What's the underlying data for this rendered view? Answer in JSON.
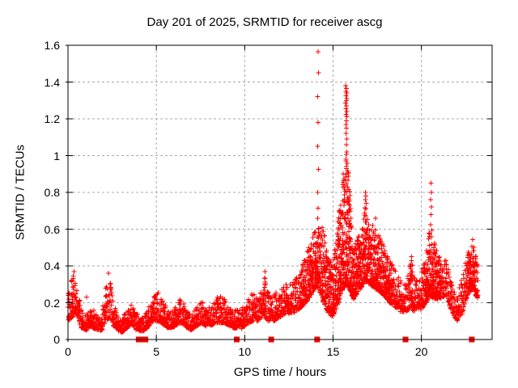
{
  "chart_data": {
    "type": "scatter",
    "title": "Day 201 of 2025, SRMTID for receiver ascg",
    "xlabel": "GPS time / hours",
    "ylabel": "SRMTID / TECUs",
    "xlim": [
      0,
      24
    ],
    "ylim": [
      0,
      1.6
    ],
    "xticks": [
      0,
      5,
      10,
      15,
      20
    ],
    "xtick_labels": [
      "0",
      "5",
      "10",
      "15",
      "20"
    ],
    "yticks": [
      0,
      0.2,
      0.4,
      0.6,
      0.8,
      1,
      1.2,
      1.4,
      1.6
    ],
    "ytick_labels": [
      "0",
      "0.2",
      "0.4",
      "0.6",
      "0.8",
      "1",
      "1.2",
      "1.4",
      "1.6"
    ],
    "grid": true,
    "legend": "none",
    "series": [
      {
        "name": "srmtid-points",
        "marker": "plus",
        "color": "#ff0000",
        "sample_step_hours": 0.008333,
        "envelope": [
          [
            0.0,
            0.1,
            0.28
          ],
          [
            0.25,
            0.12,
            0.35
          ],
          [
            0.45,
            0.15,
            0.33
          ],
          [
            0.6,
            0.1,
            0.25
          ],
          [
            0.8,
            0.06,
            0.15
          ],
          [
            1.05,
            0.05,
            0.13
          ],
          [
            1.3,
            0.07,
            0.18
          ],
          [
            1.6,
            0.05,
            0.14
          ],
          [
            1.9,
            0.05,
            0.12
          ],
          [
            2.15,
            0.1,
            0.28
          ],
          [
            2.35,
            0.12,
            0.33
          ],
          [
            2.55,
            0.08,
            0.22
          ],
          [
            2.8,
            0.05,
            0.14
          ],
          [
            3.05,
            0.04,
            0.11
          ],
          [
            3.3,
            0.06,
            0.16
          ],
          [
            3.6,
            0.08,
            0.19
          ],
          [
            3.9,
            0.05,
            0.14
          ],
          [
            4.2,
            0.04,
            0.12
          ],
          [
            4.5,
            0.06,
            0.16
          ],
          [
            4.85,
            0.1,
            0.25
          ],
          [
            5.1,
            0.1,
            0.27
          ],
          [
            5.4,
            0.08,
            0.2
          ],
          [
            5.7,
            0.06,
            0.15
          ],
          [
            6.0,
            0.07,
            0.16
          ],
          [
            6.35,
            0.09,
            0.24
          ],
          [
            6.65,
            0.07,
            0.17
          ],
          [
            6.95,
            0.05,
            0.13
          ],
          [
            7.25,
            0.07,
            0.17
          ],
          [
            7.55,
            0.09,
            0.21
          ],
          [
            7.85,
            0.07,
            0.16
          ],
          [
            8.15,
            0.08,
            0.19
          ],
          [
            8.5,
            0.09,
            0.25
          ],
          [
            8.85,
            0.09,
            0.22
          ],
          [
            9.15,
            0.07,
            0.19
          ],
          [
            9.5,
            0.06,
            0.16
          ],
          [
            9.8,
            0.06,
            0.16
          ],
          [
            10.1,
            0.08,
            0.2
          ],
          [
            10.45,
            0.1,
            0.26
          ],
          [
            10.75,
            0.1,
            0.22
          ],
          [
            11.0,
            0.12,
            0.3
          ],
          [
            11.15,
            0.12,
            0.36
          ],
          [
            11.35,
            0.1,
            0.24
          ],
          [
            11.65,
            0.1,
            0.24
          ],
          [
            11.95,
            0.12,
            0.27
          ],
          [
            12.25,
            0.14,
            0.3
          ],
          [
            12.55,
            0.14,
            0.31
          ],
          [
            12.85,
            0.15,
            0.34
          ],
          [
            13.15,
            0.17,
            0.38
          ],
          [
            13.45,
            0.2,
            0.47
          ],
          [
            13.75,
            0.24,
            0.54
          ],
          [
            14.0,
            0.28,
            0.6
          ],
          [
            14.2,
            0.28,
            0.62
          ],
          [
            14.45,
            0.2,
            0.62
          ],
          [
            14.7,
            0.15,
            0.45
          ],
          [
            15.0,
            0.12,
            0.4
          ],
          [
            15.3,
            0.2,
            0.68
          ],
          [
            15.55,
            0.28,
            0.88
          ],
          [
            15.75,
            0.3,
            1.05
          ],
          [
            15.9,
            0.28,
            0.85
          ],
          [
            16.15,
            0.22,
            0.52
          ],
          [
            16.45,
            0.26,
            0.56
          ],
          [
            16.7,
            0.3,
            0.62
          ],
          [
            16.85,
            0.32,
            0.8
          ],
          [
            17.05,
            0.3,
            0.6
          ],
          [
            17.35,
            0.28,
            0.66
          ],
          [
            17.6,
            0.26,
            0.58
          ],
          [
            17.9,
            0.24,
            0.5
          ],
          [
            18.2,
            0.2,
            0.44
          ],
          [
            18.5,
            0.18,
            0.38
          ],
          [
            18.8,
            0.15,
            0.32
          ],
          [
            19.1,
            0.15,
            0.3
          ],
          [
            19.4,
            0.17,
            0.44
          ],
          [
            19.65,
            0.15,
            0.32
          ],
          [
            19.95,
            0.16,
            0.36
          ],
          [
            20.25,
            0.2,
            0.45
          ],
          [
            20.5,
            0.24,
            0.65
          ],
          [
            20.7,
            0.22,
            0.55
          ],
          [
            21.0,
            0.22,
            0.45
          ],
          [
            21.4,
            0.24,
            0.44
          ],
          [
            21.75,
            0.14,
            0.3
          ],
          [
            22.0,
            0.1,
            0.22
          ],
          [
            22.3,
            0.14,
            0.34
          ],
          [
            22.6,
            0.24,
            0.46
          ],
          [
            22.9,
            0.28,
            0.55
          ],
          [
            23.1,
            0.24,
            0.48
          ],
          [
            23.2,
            0.22,
            0.4
          ]
        ],
        "extra_points": [
          [
            14.15,
            1.565
          ],
          [
            14.17,
            1.45
          ],
          [
            14.13,
            1.32
          ],
          [
            14.16,
            1.18
          ],
          [
            14.14,
            1.05
          ],
          [
            14.17,
            0.925
          ],
          [
            14.13,
            0.8
          ],
          [
            14.16,
            0.715
          ],
          [
            14.14,
            0.66
          ],
          [
            15.72,
            1.38
          ],
          [
            15.76,
            1.365
          ],
          [
            15.74,
            1.35
          ],
          [
            15.78,
            1.34
          ],
          [
            15.73,
            1.325
          ],
          [
            15.77,
            1.31
          ],
          [
            15.75,
            1.3
          ],
          [
            15.72,
            1.285
          ],
          [
            15.76,
            1.27
          ],
          [
            15.74,
            1.255
          ],
          [
            15.78,
            1.24
          ],
          [
            15.73,
            1.225
          ],
          [
            15.77,
            1.21
          ],
          [
            15.75,
            1.19
          ],
          [
            15.74,
            1.17
          ],
          [
            15.76,
            1.15
          ],
          [
            15.73,
            1.12
          ],
          [
            15.77,
            1.09
          ],
          [
            15.75,
            1.06
          ],
          [
            15.78,
            1.02
          ],
          [
            15.74,
            0.98
          ],
          [
            15.76,
            0.94
          ],
          [
            15.73,
            0.9
          ],
          [
            16.83,
            0.8
          ],
          [
            16.86,
            0.78
          ],
          [
            16.84,
            0.76
          ],
          [
            16.87,
            0.74
          ],
          [
            16.85,
            0.71
          ],
          [
            20.55,
            0.85
          ],
          [
            20.57,
            0.8
          ],
          [
            20.53,
            0.76
          ],
          [
            20.56,
            0.72
          ],
          [
            20.54,
            0.68
          ],
          [
            11.15,
            0.37
          ],
          [
            0.35,
            0.37
          ],
          [
            2.3,
            0.36
          ],
          [
            19.45,
            0.45
          ],
          [
            17.4,
            0.66
          ],
          [
            1.05,
            0.23
          ]
        ]
      },
      {
        "name": "event-markers",
        "marker": "filled-square",
        "color": "#ff0000",
        "y": 0,
        "x": [
          4.0,
          4.12,
          4.25,
          4.38,
          9.55,
          11.5,
          14.1,
          19.1,
          22.85
        ]
      }
    ]
  },
  "colors": {
    "points": "#ff0000",
    "grid": "#a8a8a8",
    "axis": "#000000",
    "background": "#ffffff",
    "text": "#000000"
  }
}
